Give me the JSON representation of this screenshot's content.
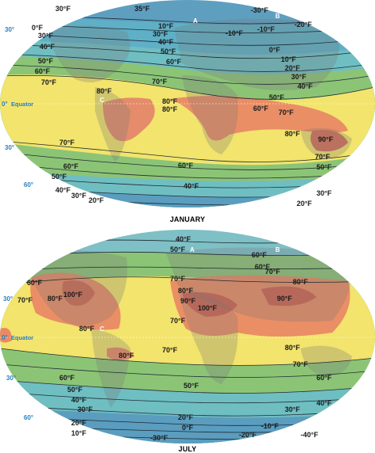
{
  "maps": [
    {
      "id": "jan",
      "caption": "JANUARY",
      "lat_labels": [
        "30°",
        "0°",
        "30°",
        "60°"
      ],
      "equator_label": "Equator",
      "points": [
        "A",
        "B",
        "C"
      ],
      "isotherms": [
        "35°F",
        "30°F",
        "0°F",
        "30°F",
        "40°F",
        "50°F",
        "60°F",
        "70°F",
        "-10°F",
        "10°F",
        "30°F",
        "40°F",
        "50°F",
        "60°F",
        "70°F",
        "-30°F",
        "-20°F",
        "-10°F",
        "0°F",
        "10°F",
        "20°F",
        "30°F",
        "40°F",
        "50°F",
        "60°F",
        "70°F",
        "80°F",
        "80°F",
        "80°F",
        "80°F",
        "90°F",
        "70°F",
        "70°F",
        "60°F",
        "60°F",
        "50°F",
        "50°F",
        "40°F",
        "40°F",
        "30°F",
        "30°F",
        "20°F",
        "20°F"
      ],
      "colors": {
        "band_cold": "#7ea9c4",
        "band_cool": "#5fb9c8",
        "band_green": "#8cc476",
        "band_yellow": "#f4e46b",
        "band_hot": "#e98966"
      }
    },
    {
      "id": "jul",
      "caption": "JULY",
      "lat_labels": [
        "30°",
        "0°",
        "30°",
        "60°"
      ],
      "equator_label": "Equator",
      "points": [
        "A",
        "B",
        "C"
      ],
      "isotherms": [
        "40°F",
        "50°F",
        "60°F",
        "60°F",
        "70°F",
        "70°F",
        "70°F",
        "80°F",
        "80°F",
        "90°F",
        "100°F",
        "100°F",
        "90°F",
        "80°F",
        "80°F",
        "80°F",
        "70°F",
        "70°F",
        "70°F",
        "60°F",
        "60°F",
        "50°F",
        "50°F",
        "40°F",
        "40°F",
        "30°F",
        "30°F",
        "20°F",
        "20°F",
        "10°F",
        "0°F",
        "-10°F",
        "-20°F",
        "-30°F",
        "-40°F",
        "60°F",
        "80°F"
      ],
      "colors": {
        "band_cold": "#7ea9c4",
        "band_cool": "#5fb9c8",
        "band_green": "#8cc476",
        "band_yellow": "#f4e46b",
        "band_hot": "#e98966"
      }
    }
  ]
}
